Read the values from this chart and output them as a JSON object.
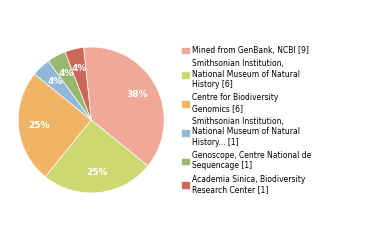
{
  "labels": [
    "Mined from GenBank, NCBI [9]",
    "Smithsonian Institution,\nNational Museum of Natural\nHistory [6]",
    "Centre for Biodiversity\nGenomics [6]",
    "Smithsonian Institution,\nNational Museum of Natural\nHistory... [1]",
    "Genoscope, Centre National de\nSequencage [1]",
    "Academia Sinica, Biodiversity\nResearch Center [1]"
  ],
  "values": [
    9,
    6,
    6,
    1,
    1,
    1
  ],
  "colors": [
    "#f0a898",
    "#ccd870",
    "#f0b464",
    "#90b8d8",
    "#98b870",
    "#cc6858"
  ],
  "startangle": 96,
  "figsize": [
    3.8,
    2.4
  ],
  "dpi": 100
}
